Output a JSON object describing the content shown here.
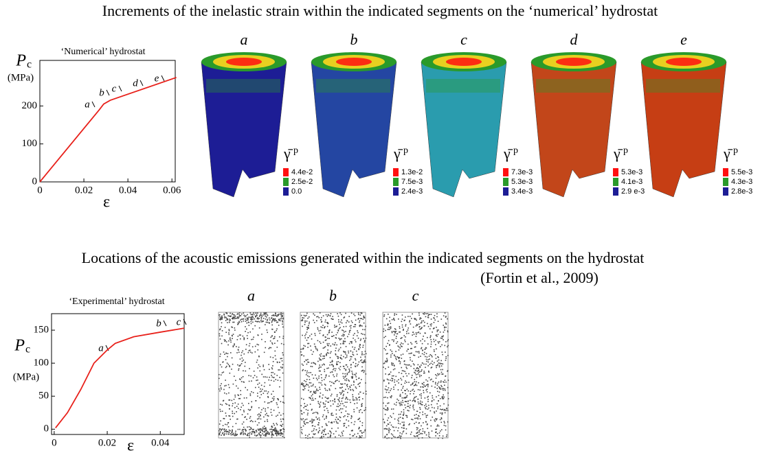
{
  "headings": {
    "top": "Increments of the inelastic strain within the indicated segments on the ‘numerical’ hydrostat",
    "bottom": "Locations of the acoustic emissions generated within the indicated segments on the hydrostat",
    "citation": "(Fortin et al., 2009)"
  },
  "chart_data": [
    {
      "type": "line",
      "title": "‘Numerical’ hydrostat",
      "y_label": "P",
      "y_label_sub": "c",
      "y_unit": "(MPa)",
      "x_label": "ε",
      "x": [
        0,
        0.027,
        0.029,
        0.032,
        0.062
      ],
      "series": [
        {
          "color": "#e8201a",
          "values": [
            0,
            190,
            205,
            215,
            275
          ]
        }
      ],
      "xlim": [
        0,
        0.0615
      ],
      "ylim": [
        0,
        320
      ],
      "xticks": [
        0,
        0.02,
        0.04,
        0.06
      ],
      "yticks": [
        0,
        100,
        200
      ],
      "segments": [
        "a",
        "b",
        "c",
        "d",
        "e"
      ]
    },
    {
      "type": "line",
      "title": "‘Experimental’ hydrostat",
      "y_label": "P",
      "y_label_sub": "c",
      "y_unit": "(MPa)",
      "x_label": "ε",
      "x": [
        0.0005,
        0.005,
        0.01,
        0.015,
        0.02,
        0.023,
        0.03,
        0.04,
        0.049
      ],
      "series": [
        {
          "color": "#e8201a",
          "values": [
            2,
            25,
            60,
            100,
            120,
            130,
            140,
            147,
            153
          ]
        }
      ],
      "xlim": [
        -0.001,
        0.049
      ],
      "ylim": [
        -8,
        175
      ],
      "xticks": [
        0,
        0.02,
        0.04
      ],
      "yticks": [
        0,
        50,
        100,
        150
      ],
      "segments": [
        "a",
        "b",
        "c"
      ]
    }
  ],
  "simulations": [
    {
      "label": "a",
      "symbol": "γ̄",
      "symbol_sup": "p",
      "color": "#1d1d95",
      "legend": [
        {
          "label": "4.4e-2",
          "color": "#ff1010"
        },
        {
          "label": "2.5e-2",
          "color": "#2a9a2a"
        },
        {
          "label": "0.0",
          "color": "#1d1d95"
        }
      ]
    },
    {
      "label": "b",
      "symbol": "γ̄",
      "symbol_sup": "p",
      "color": "#2446a2",
      "legend": [
        {
          "label": "1.3e-2",
          "color": "#ff1010"
        },
        {
          "label": "7.5e-3",
          "color": "#2a9a2a"
        },
        {
          "label": "2.4e-3",
          "color": "#1d1d95"
        }
      ]
    },
    {
      "label": "c",
      "symbol": "γ̄",
      "symbol_sup": "p",
      "color": "#2a9cae",
      "legend": [
        {
          "label": "7.3e-3",
          "color": "#ff1010"
        },
        {
          "label": "5.3e-3",
          "color": "#2a9a2a"
        },
        {
          "label": "3.4e-3",
          "color": "#1d1d95"
        }
      ]
    },
    {
      "label": "d",
      "symbol": "γ̄",
      "symbol_sup": "p",
      "color": "#c2461a",
      "legend": [
        {
          "label": "5.3e-3",
          "color": "#ff1010"
        },
        {
          "label": "4.1e-3",
          "color": "#2a9a2a"
        },
        {
          "label": "2.9  e-3",
          "color": "#1d1d95"
        }
      ]
    },
    {
      "label": "e",
      "symbol": "γ̄",
      "symbol_sup": "p",
      "color": "#c63e14",
      "legend": [
        {
          "label": "5.5e-3",
          "color": "#ff1010"
        },
        {
          "label": "4.3e-3",
          "color": "#2a9a2a"
        },
        {
          "label": "2.8e-3",
          "color": "#1d1d95"
        }
      ]
    }
  ],
  "emissions": [
    "a",
    "b",
    "c"
  ]
}
